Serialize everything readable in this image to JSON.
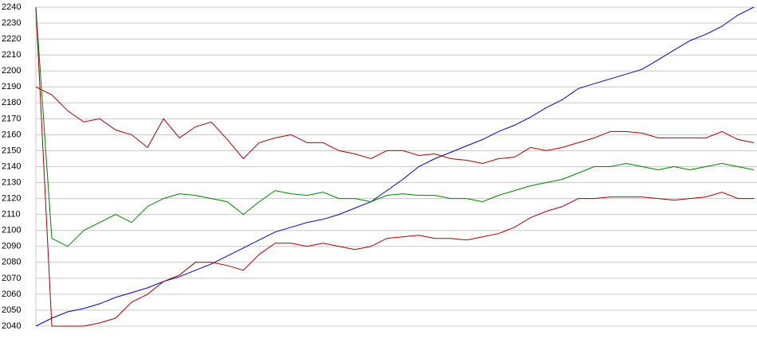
{
  "chart_data": {
    "type": "line",
    "ylim": [
      2040,
      2240
    ],
    "yticks": [
      2040,
      2050,
      2060,
      2070,
      2080,
      2090,
      2100,
      2110,
      2120,
      2130,
      2140,
      2150,
      2160,
      2170,
      2180,
      2190,
      2200,
      2210,
      2220,
      2230,
      2240
    ],
    "grid": true,
    "series": [
      {
        "color": "#0000cc",
        "values": [
          2040,
          2045,
          2049,
          2051,
          2054,
          2058,
          2061,
          2064,
          2068,
          2071,
          2075,
          2079,
          2084,
          2089,
          2094,
          2099,
          2102,
          2105,
          2107,
          2110,
          2114,
          2118,
          2125,
          2132,
          2140,
          2145,
          2149,
          2153,
          2157,
          2162,
          2166,
          2171,
          2177,
          2182,
          2189,
          2192,
          2195,
          2198,
          2201,
          2207,
          2213,
          2219,
          2223,
          2228,
          2235,
          2240
        ]
      },
      {
        "color": "#aa0000",
        "values": [
          2190,
          2185,
          2175,
          2168,
          2170,
          2163,
          2160,
          2152,
          2170,
          2158,
          2165,
          2168,
          2157,
          2145,
          2155,
          2158,
          2160,
          2155,
          2155,
          2150,
          2148,
          2145,
          2150,
          2150,
          2147,
          2148,
          2145,
          2144,
          2142,
          2145,
          2146,
          2152,
          2150,
          2152,
          2155,
          2158,
          2162,
          2162,
          2161,
          2158,
          2158,
          2158,
          2158,
          2162,
          2157,
          2155
        ]
      },
      {
        "color": "#008000",
        "values": [
          2240,
          2095,
          2090,
          2100,
          2105,
          2110,
          2105,
          2115,
          2120,
          2123,
          2122,
          2120,
          2118,
          2110,
          2118,
          2125,
          2123,
          2122,
          2124,
          2120,
          2120,
          2118,
          2122,
          2123,
          2122,
          2122,
          2120,
          2120,
          2118,
          2122,
          2125,
          2128,
          2130,
          2132,
          2136,
          2140,
          2140,
          2142,
          2140,
          2138,
          2140,
          2138,
          2140,
          2142,
          2140,
          2138
        ]
      },
      {
        "color": "#aa0000",
        "values": [
          2240,
          2040,
          2040,
          2040,
          2042,
          2045,
          2055,
          2060,
          2068,
          2072,
          2080,
          2080,
          2078,
          2075,
          2085,
          2092,
          2092,
          2090,
          2092,
          2090,
          2088,
          2090,
          2095,
          2096,
          2097,
          2095,
          2095,
          2094,
          2096,
          2098,
          2102,
          2108,
          2112,
          2115,
          2120,
          2120,
          2121,
          2121,
          2121,
          2120,
          2119,
          2120,
          2121,
          2124,
          2120,
          2120
        ]
      }
    ]
  }
}
